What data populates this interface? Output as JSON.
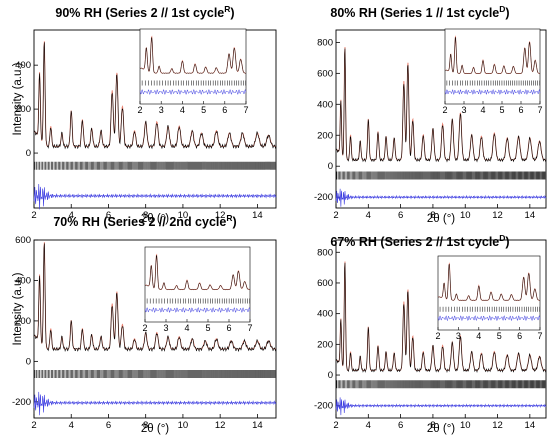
{
  "chart_data": [
    {
      "type": "line",
      "title": "90% RH (Series 2 // 1st cycle",
      "title_sup": "R",
      "title_close": ")",
      "xlabel": "2θ (°)",
      "ylabel": "Intensity (a.u.)",
      "xlim": [
        2,
        15
      ],
      "ylim": [
        -250,
        560
      ],
      "yticks": [
        0,
        200,
        400
      ],
      "xticks": [
        2,
        4,
        6,
        8,
        10,
        12,
        14
      ],
      "inset_xticks": [
        2,
        3,
        4,
        5,
        6,
        7
      ],
      "diff_baseline": -195,
      "series": [
        {
          "name": "",
          "color": "#000000",
          "role": "observed"
        },
        {
          "name": "",
          "color": "#e8806f",
          "role": "calculated"
        },
        {
          "name": "",
          "color": "#000000",
          "role": "reflections"
        },
        {
          "name": "",
          "color": "#3a3ae0",
          "role": "difference"
        }
      ],
      "peaks": [
        [
          2.3,
          300
        ],
        [
          2.55,
          470
        ],
        [
          2.9,
          90
        ],
        [
          3.5,
          60
        ],
        [
          4.0,
          160
        ],
        [
          4.6,
          120
        ],
        [
          5.1,
          80
        ],
        [
          5.6,
          70
        ],
        [
          6.2,
          250
        ],
        [
          6.45,
          330
        ],
        [
          6.75,
          180
        ],
        [
          7.4,
          70
        ],
        [
          8.0,
          110
        ],
        [
          8.6,
          110
        ],
        [
          9.2,
          90
        ],
        [
          9.8,
          90
        ],
        [
          10.5,
          70
        ],
        [
          11.0,
          60
        ],
        [
          11.8,
          70
        ],
        [
          12.5,
          60
        ],
        [
          13.2,
          60
        ],
        [
          14.0,
          60
        ],
        [
          14.6,
          50
        ]
      ],
      "background": 30
    },
    {
      "type": "line",
      "title": "80% RH (Series 1 // 1st cycle",
      "title_sup": "D",
      "title_close": ")",
      "xlabel": "2θ (°)",
      "ylabel": "",
      "xlim": [
        2,
        15
      ],
      "ylim": [
        -270,
        880
      ],
      "yticks": [
        -200,
        0,
        200,
        400,
        600,
        800
      ],
      "xticks": [
        2,
        4,
        6,
        8,
        10,
        12,
        14
      ],
      "inset_xticks": [
        2,
        3,
        4,
        5,
        6,
        7
      ],
      "diff_baseline": -200,
      "series": [
        {
          "name": "",
          "color": "#000000",
          "role": "observed"
        },
        {
          "name": "",
          "color": "#e8806f",
          "role": "calculated"
        },
        {
          "name": "",
          "color": "#000000",
          "role": "reflections"
        },
        {
          "name": "",
          "color": "#3a3ae0",
          "role": "difference"
        }
      ],
      "peaks": [
        [
          2.3,
          350
        ],
        [
          2.55,
          720
        ],
        [
          2.9,
          160
        ],
        [
          3.5,
          120
        ],
        [
          4.0,
          260
        ],
        [
          4.6,
          180
        ],
        [
          5.1,
          150
        ],
        [
          5.6,
          140
        ],
        [
          6.2,
          500
        ],
        [
          6.45,
          620
        ],
        [
          6.75,
          260
        ],
        [
          7.4,
          160
        ],
        [
          8.0,
          200
        ],
        [
          8.6,
          230
        ],
        [
          9.2,
          260
        ],
        [
          9.7,
          300
        ],
        [
          10.4,
          160
        ],
        [
          11.0,
          150
        ],
        [
          11.8,
          170
        ],
        [
          12.6,
          140
        ],
        [
          13.3,
          150
        ],
        [
          14.0,
          140
        ],
        [
          14.6,
          120
        ]
      ],
      "background": 40
    },
    {
      "type": "line",
      "title": "70% RH (Series 2 // 2nd cycle",
      "title_sup": "R",
      "title_close": ")",
      "xlabel": "2θ (°)",
      "ylabel": "Intensity (a.u.)",
      "xlim": [
        2,
        15
      ],
      "ylim": [
        -280,
        600
      ],
      "yticks": [
        -200,
        0,
        200,
        400,
        600
      ],
      "xticks": [
        2,
        4,
        6,
        8,
        10,
        12,
        14
      ],
      "inset_xticks": [
        2,
        3,
        4,
        5,
        6,
        7
      ],
      "diff_baseline": -205,
      "series": [
        {
          "name": "",
          "color": "#000000",
          "role": "observed"
        },
        {
          "name": "",
          "color": "#e8806f",
          "role": "calculated"
        },
        {
          "name": "",
          "color": "#000000",
          "role": "reflections"
        },
        {
          "name": "",
          "color": "#3a3ae0",
          "role": "difference"
        }
      ],
      "peaks": [
        [
          2.3,
          330
        ],
        [
          2.55,
          520
        ],
        [
          2.9,
          100
        ],
        [
          3.5,
          60
        ],
        [
          4.0,
          140
        ],
        [
          4.6,
          100
        ],
        [
          5.1,
          70
        ],
        [
          5.6,
          60
        ],
        [
          6.2,
          220
        ],
        [
          6.45,
          280
        ],
        [
          6.75,
          120
        ],
        [
          7.4,
          50
        ],
        [
          8.0,
          80
        ],
        [
          8.6,
          80
        ],
        [
          9.2,
          60
        ],
        [
          9.8,
          60
        ],
        [
          10.5,
          50
        ],
        [
          11.2,
          40
        ],
        [
          11.8,
          50
        ],
        [
          12.6,
          40
        ],
        [
          13.3,
          40
        ],
        [
          14.0,
          40
        ],
        [
          14.6,
          40
        ]
      ],
      "background": 60
    },
    {
      "type": "line",
      "title": "67% RH (Series 2 // 1st cycle",
      "title_sup": "D",
      "title_close": ")",
      "xlabel": "2θ (°)",
      "ylabel": "",
      "xlim": [
        2,
        15
      ],
      "ylim": [
        -280,
        880
      ],
      "yticks": [
        -200,
        0,
        200,
        400,
        600,
        800
      ],
      "xticks": [
        2,
        4,
        6,
        8,
        10,
        12,
        14
      ],
      "inset_xticks": [
        2,
        3,
        4,
        5,
        6,
        7
      ],
      "diff_baseline": -200,
      "series": [
        {
          "name": "",
          "color": "#000000",
          "role": "observed"
        },
        {
          "name": "",
          "color": "#e8806f",
          "role": "calculated"
        },
        {
          "name": "",
          "color": "#000000",
          "role": "reflections"
        },
        {
          "name": "",
          "color": "#3a3ae0",
          "role": "difference"
        }
      ],
      "peaks": [
        [
          2.3,
          300
        ],
        [
          2.55,
          700
        ],
        [
          2.9,
          120
        ],
        [
          3.5,
          90
        ],
        [
          4.0,
          280
        ],
        [
          4.6,
          160
        ],
        [
          5.1,
          120
        ],
        [
          5.6,
          110
        ],
        [
          6.2,
          440
        ],
        [
          6.45,
          520
        ],
        [
          6.75,
          220
        ],
        [
          7.4,
          120
        ],
        [
          8.0,
          160
        ],
        [
          8.6,
          160
        ],
        [
          9.2,
          180
        ],
        [
          9.7,
          220
        ],
        [
          10.4,
          120
        ],
        [
          11.0,
          110
        ],
        [
          11.8,
          120
        ],
        [
          12.6,
          100
        ],
        [
          13.3,
          110
        ],
        [
          14.0,
          100
        ],
        [
          14.6,
          90
        ]
      ],
      "background": 30
    }
  ]
}
